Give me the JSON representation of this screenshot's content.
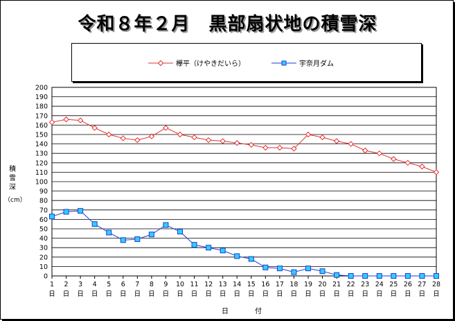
{
  "chart_data": {
    "type": "line",
    "title": "令和８年２月　黒部扇状地の積雪深",
    "xlabel": "日　付",
    "ylabel": "積雪深",
    "yunit": "（cm）",
    "ylim": [
      0,
      200
    ],
    "yticks": [
      0,
      10,
      20,
      30,
      40,
      50,
      60,
      70,
      80,
      90,
      100,
      110,
      120,
      130,
      140,
      150,
      160,
      170,
      180,
      190,
      200
    ],
    "grid": true,
    "legend_position": "top",
    "day_suffix": "日",
    "x": [
      1,
      2,
      3,
      4,
      5,
      6,
      7,
      8,
      9,
      10,
      11,
      12,
      13,
      14,
      15,
      16,
      17,
      18,
      19,
      20,
      21,
      22,
      23,
      24,
      25,
      26,
      27,
      28
    ],
    "series": [
      {
        "name": "欅平（けやきだいら）",
        "color": "#e03030",
        "marker": "diamond",
        "values": [
          163,
          166,
          165,
          157,
          150,
          146,
          144,
          148,
          157,
          150,
          147,
          144,
          143,
          141,
          139,
          136,
          136,
          135,
          150,
          147,
          143,
          140,
          133,
          130,
          124,
          120,
          116,
          110
        ]
      },
      {
        "name": "宇奈月ダム",
        "color": "#1a3fd0",
        "marker": "square",
        "fill": "#33ccff",
        "values": [
          63,
          68,
          69,
          55,
          46,
          38,
          39,
          44,
          54,
          47,
          33,
          30,
          27,
          21,
          18,
          9,
          8,
          4,
          8,
          5,
          1,
          0,
          0,
          0,
          0,
          0,
          0,
          0
        ]
      }
    ]
  }
}
